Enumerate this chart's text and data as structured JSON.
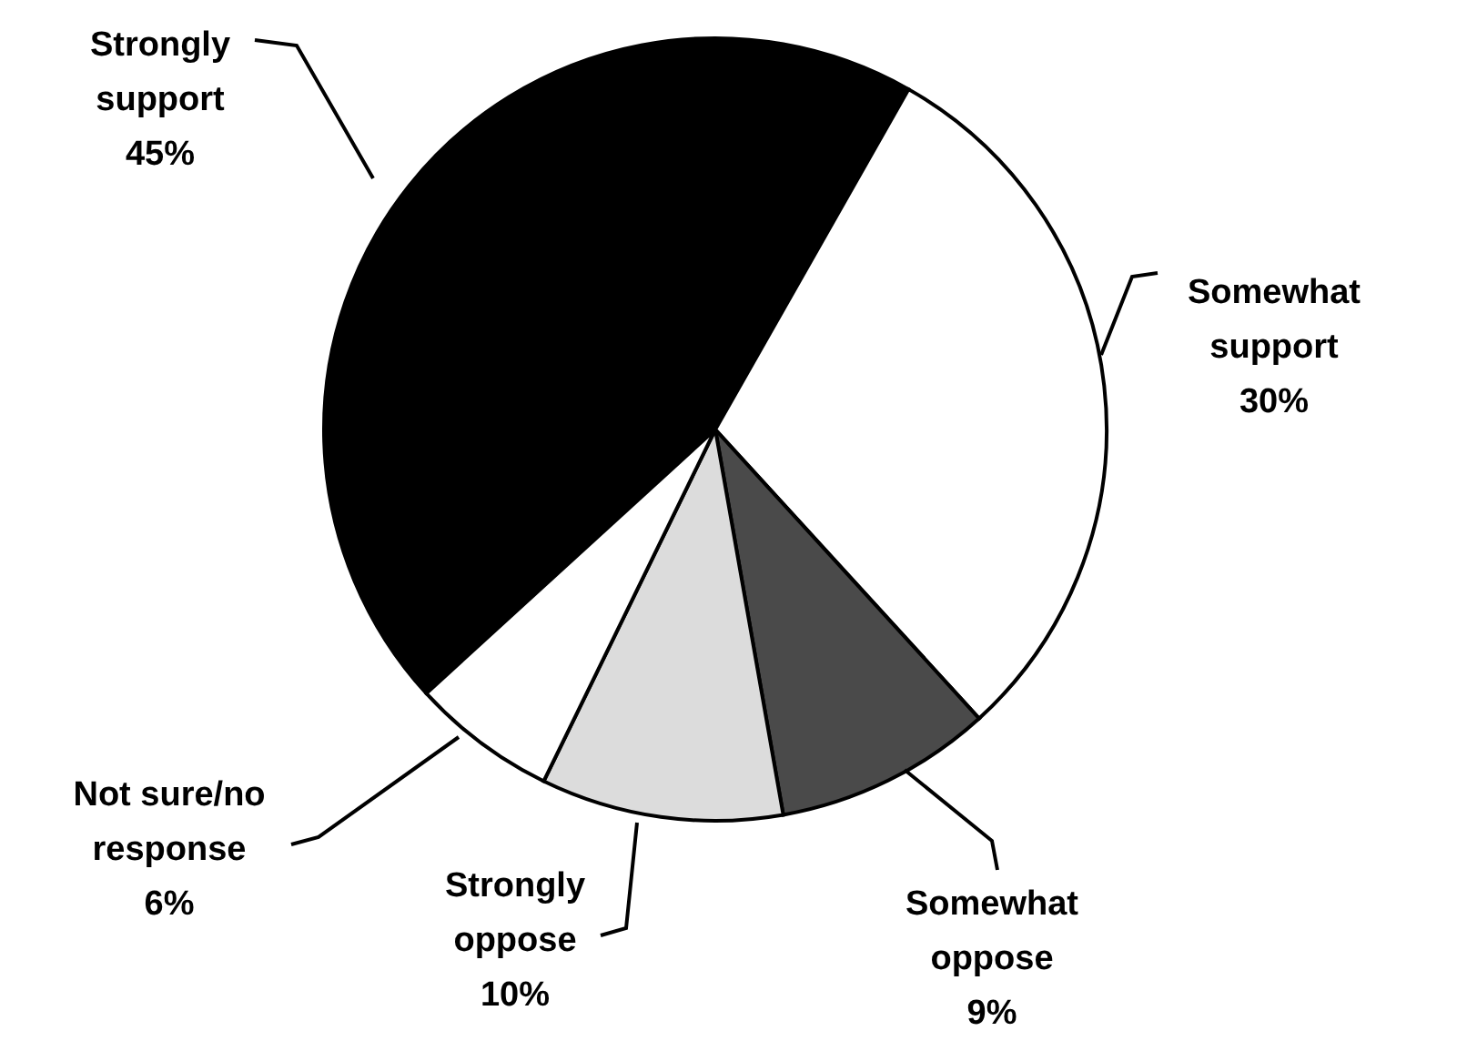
{
  "chart_data": {
    "type": "pie",
    "categories": [
      "Strongly support",
      "Somewhat support",
      "Somewhat oppose",
      "Strongly oppose",
      "Not sure/no response"
    ],
    "values": [
      45,
      30,
      9,
      10,
      6
    ],
    "colors": [
      "#000000",
      "#ffffff",
      "#4a4a4a",
      "#dcdcdc",
      "#ffffff"
    ],
    "value_labels": [
      "45%",
      "30%",
      "9%",
      "10%",
      "6%"
    ]
  }
}
